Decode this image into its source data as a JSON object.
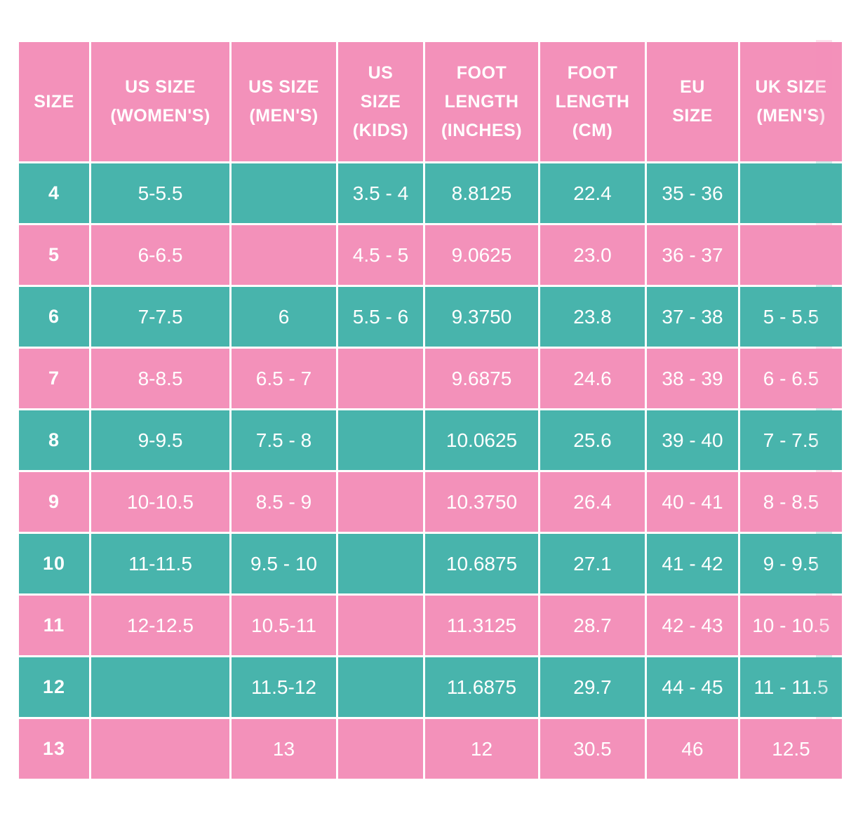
{
  "colors": {
    "pink": "#F391BA",
    "teal": "#48B4AC",
    "grid": "#FFFFFF",
    "text": "#FFFFFF",
    "background": "#FFFFFF"
  },
  "chart_data": {
    "type": "table",
    "columns": [
      "SIZE",
      "US SIZE (WOMEN'S)",
      "US SIZE (MEN'S)",
      "US SIZE (KIDS)",
      "FOOT LENGTH (INCHES)",
      "FOOT LENGTH (CM)",
      "EU SIZE",
      "UK SIZE (MEN'S)"
    ],
    "header_lines": [
      [
        "SIZE"
      ],
      [
        "US SIZE",
        "(WOMEN'S)"
      ],
      [
        "US SIZE",
        "(MEN'S)"
      ],
      [
        "US",
        "SIZE",
        "(KIDS)"
      ],
      [
        "FOOT",
        "LENGTH",
        "(INCHES)"
      ],
      [
        "FOOT",
        "LENGTH",
        "(CM)"
      ],
      [
        "EU",
        "SIZE"
      ],
      [
        "UK SIZE",
        "(MEN'S)"
      ]
    ],
    "rows": [
      {
        "size": "4",
        "values": [
          "5-5.5",
          "",
          "3.5 - 4",
          "8.8125",
          "22.4",
          "35 - 36",
          ""
        ]
      },
      {
        "size": "5",
        "values": [
          "6-6.5",
          "",
          "4.5 - 5",
          "9.0625",
          "23.0",
          "36 - 37",
          ""
        ]
      },
      {
        "size": "6",
        "values": [
          "7-7.5",
          "6",
          "5.5 - 6",
          "9.3750",
          "23.8",
          "37 - 38",
          "5 - 5.5"
        ]
      },
      {
        "size": "7",
        "values": [
          "8-8.5",
          "6.5 - 7",
          "",
          "9.6875",
          "24.6",
          "38 - 39",
          "6 - 6.5"
        ]
      },
      {
        "size": "8",
        "values": [
          "9-9.5",
          "7.5 - 8",
          "",
          "10.0625",
          "25.6",
          "39 - 40",
          "7 - 7.5"
        ]
      },
      {
        "size": "9",
        "values": [
          "10-10.5",
          "8.5 - 9",
          "",
          "10.3750",
          "26.4",
          "40 - 41",
          "8 - 8.5"
        ]
      },
      {
        "size": "10",
        "values": [
          "11-11.5",
          "9.5 - 10",
          "",
          "10.6875",
          "27.1",
          "41 - 42",
          "9 - 9.5"
        ]
      },
      {
        "size": "11",
        "values": [
          "12-12.5",
          "10.5-11",
          "",
          "11.3125",
          "28.7",
          "42 - 43",
          "10 - 10.5"
        ]
      },
      {
        "size": "12",
        "values": [
          "",
          "11.5-12",
          "",
          "11.6875",
          "29.7",
          "44 - 45",
          "11 - 11.5"
        ]
      },
      {
        "size": "13",
        "values": [
          "",
          "13",
          "",
          "12",
          "30.5",
          "46",
          "12.5"
        ]
      }
    ],
    "layout": {
      "grid": true,
      "row_striping": "alternating teal/pink, first data row teal, header pink",
      "rightmost_column_cut_off": true
    }
  }
}
